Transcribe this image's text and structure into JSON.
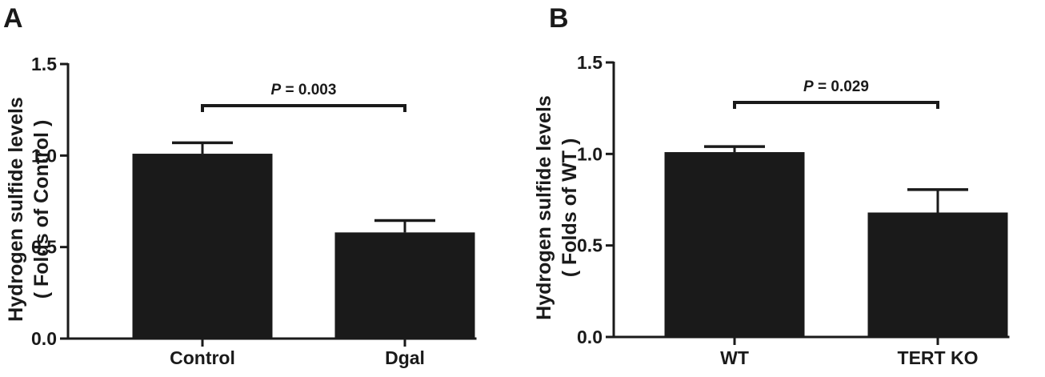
{
  "chart_data": [
    {
      "panel_letter": "A",
      "type": "bar",
      "categories": [
        "Control",
        "Dgal"
      ],
      "values": [
        1.01,
        0.58
      ],
      "error": [
        0.06,
        0.065
      ],
      "ylabel_line1": "Hydrogen sulfide levels",
      "ylabel_line2": "( Folds of Control )",
      "ylim": [
        0,
        1.5
      ],
      "yticks": [
        "0.0",
        "0.5",
        "1.0",
        "1.5"
      ],
      "significance": {
        "p_letter": "P",
        "p_text": " = 0.003",
        "between": [
          0,
          1
        ]
      },
      "bar_color": "#1a1a1a"
    },
    {
      "panel_letter": "B",
      "type": "bar",
      "categories": [
        "WT",
        "TERT KO"
      ],
      "values": [
        1.01,
        0.68
      ],
      "error": [
        0.03,
        0.125
      ],
      "ylabel_line1": "Hydrogen sulfide levels",
      "ylabel_line2": "( Folds of WT )",
      "ylim": [
        0,
        1.5
      ],
      "yticks": [
        "0.0",
        "0.5",
        "1.0",
        "1.5"
      ],
      "significance": {
        "p_letter": "P",
        "p_text": " = 0.029",
        "between": [
          0,
          1
        ]
      },
      "bar_color": "#1a1a1a"
    }
  ]
}
